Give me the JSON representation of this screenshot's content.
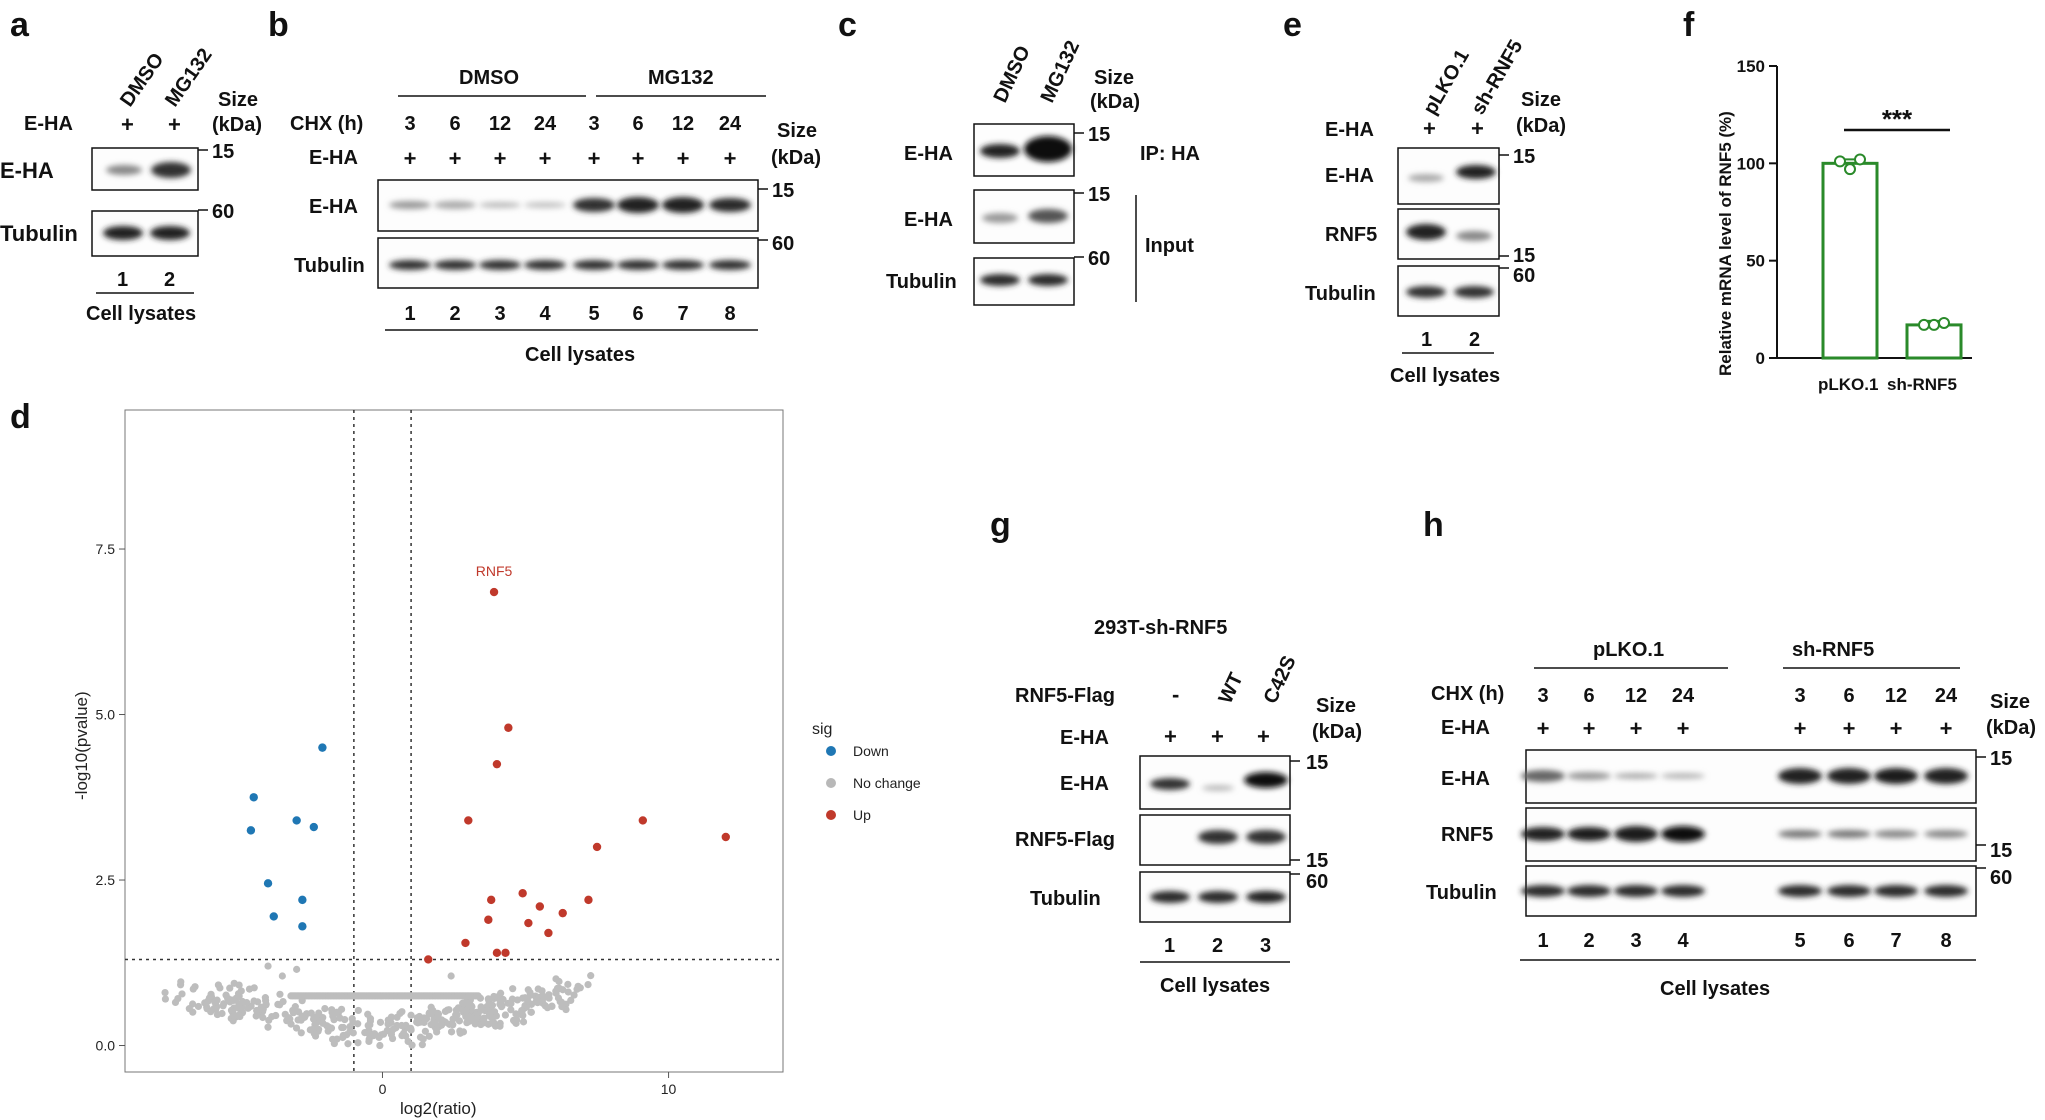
{
  "panel_labels": {
    "a": "a",
    "b": "b",
    "c": "c",
    "d": "d",
    "e": "e",
    "f": "f",
    "g": "g",
    "h": "h"
  },
  "common": {
    "e_ha": "E-HA",
    "tubulin": "Tubulin",
    "rnf5": "RNF5",
    "rnf5_flag": "RNF5-Flag",
    "size": "Size",
    "kda": "(kDa)",
    "cell_lysates": "Cell lysates",
    "plus": "+",
    "minus": "-",
    "chx": "CHX (h)",
    "mw15": "15",
    "mw60": "60"
  },
  "panel_a": {
    "columns": [
      "DMSO",
      "MG132"
    ],
    "lanes": [
      "1",
      "2"
    ]
  },
  "panel_b": {
    "groups": [
      "DMSO",
      "MG132"
    ],
    "chx_values": [
      "3",
      "6",
      "12",
      "24",
      "3",
      "6",
      "12",
      "24"
    ],
    "lanes": [
      "1",
      "2",
      "3",
      "4",
      "5",
      "6",
      "7",
      "8"
    ]
  },
  "panel_c": {
    "columns": [
      "DMSO",
      "MG132"
    ],
    "ip_label": "IP: HA",
    "input_label": "Input"
  },
  "panel_e": {
    "columns": [
      "pLKO.1",
      "sh-RNF5"
    ],
    "lanes": [
      "1",
      "2"
    ]
  },
  "panel_g": {
    "title": "293T-sh-RNF5",
    "columns": [
      "-",
      "WT",
      "C42S"
    ],
    "lanes": [
      "1",
      "2",
      "3"
    ]
  },
  "panel_h": {
    "groups": [
      "pLKO.1",
      "sh-RNF5"
    ],
    "chx_values": [
      "3",
      "6",
      "12",
      "24",
      "3",
      "6",
      "12",
      "24"
    ],
    "lanes": [
      "1",
      "2",
      "3",
      "4",
      "5",
      "6",
      "7",
      "8"
    ]
  },
  "chart_data": [
    {
      "id": "f",
      "type": "bar",
      "categories": [
        "pLKO.1",
        "sh-RNF5"
      ],
      "values": [
        100,
        17
      ],
      "points": [
        [
          101,
          97,
          102
        ],
        [
          17,
          17,
          18
        ]
      ],
      "ylabel": "Relative mRNA level of RNF5 (%)",
      "ylim": [
        0,
        150
      ],
      "yticks": [
        "0",
        "50",
        "100",
        "150"
      ],
      "significance": "***",
      "color": "#2a8a2a"
    },
    {
      "id": "d",
      "type": "scatter",
      "xlabel": "log2(ratio)",
      "ylabel": "-log10(pvalue)",
      "xlim": [
        -9,
        14
      ],
      "ylim": [
        -0.4,
        9.6
      ],
      "xticks": [
        "0",
        "10"
      ],
      "yticks": [
        "0.0",
        "2.5",
        "5.0",
        "7.5"
      ],
      "thresholds": {
        "x": [
          -1,
          1
        ],
        "y": 1.3
      },
      "legend_title": "sig",
      "legend": [
        {
          "label": "Down",
          "color": "#1f77b4"
        },
        {
          "label": "No change",
          "color": "#b8b8b8"
        },
        {
          "label": "Up",
          "color": "#c0392b"
        }
      ],
      "annotation": {
        "text": "RNF5",
        "x": 3.9,
        "y": 6.85
      },
      "down_points": [
        [
          -4.5,
          3.75
        ],
        [
          -4.6,
          3.25
        ],
        [
          -4.0,
          2.45
        ],
        [
          -3.8,
          1.95
        ],
        [
          -3.0,
          3.4
        ],
        [
          -2.4,
          3.3
        ],
        [
          -2.8,
          2.2
        ],
        [
          -2.8,
          1.8
        ],
        [
          -2.1,
          4.5
        ]
      ],
      "up_points": [
        [
          3.9,
          6.85
        ],
        [
          4.4,
          4.8
        ],
        [
          4.0,
          4.25
        ],
        [
          3.0,
          3.4
        ],
        [
          9.1,
          3.4
        ],
        [
          12.0,
          3.15
        ],
        [
          7.5,
          3.0
        ],
        [
          3.8,
          2.2
        ],
        [
          4.9,
          2.3
        ],
        [
          5.5,
          2.1
        ],
        [
          6.3,
          2.0
        ],
        [
          7.2,
          2.2
        ],
        [
          2.9,
          1.55
        ],
        [
          3.7,
          1.9
        ],
        [
          5.1,
          1.85
        ],
        [
          5.8,
          1.7
        ],
        [
          4.0,
          1.4
        ],
        [
          4.3,
          1.4
        ],
        [
          1.6,
          1.3
        ]
      ]
    }
  ]
}
